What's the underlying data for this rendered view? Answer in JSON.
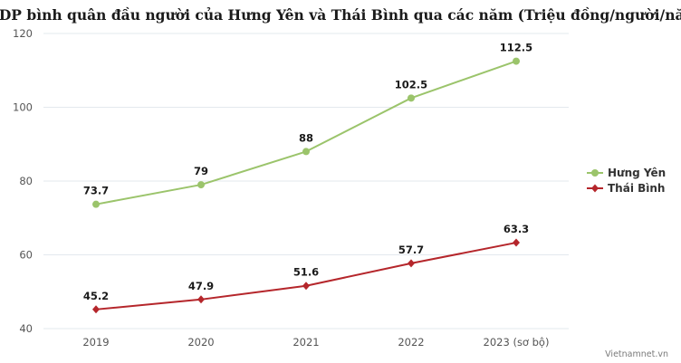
{
  "chart_data": {
    "type": "line",
    "title": "GRDP bình quân đầu người của Hưng Yên và Thái Bình qua các năm (Triệu đồng/người/năm)",
    "categories": [
      "2019",
      "2020",
      "2021",
      "2022",
      "2023 (sơ bộ)"
    ],
    "ylim": [
      40,
      120
    ],
    "yticks": [
      "40",
      "60",
      "80",
      "100",
      "120"
    ],
    "grid": true,
    "legend_position": "right",
    "series": [
      {
        "name": "Hưng Yên",
        "color": "#9bc46b",
        "values": [
          73.7,
          79,
          88,
          102.5,
          112.5
        ],
        "labels": [
          "73.7",
          "79",
          "88",
          "102.5",
          "112.5"
        ]
      },
      {
        "name": "Thái Bình",
        "color": "#b5262b",
        "values": [
          45.2,
          47.9,
          51.6,
          57.7,
          63.3
        ],
        "labels": [
          "45.2",
          "47.9",
          "51.6",
          "57.7",
          "63.3"
        ]
      }
    ]
  },
  "footer": {
    "credit": "Vietnamnet.vn"
  }
}
